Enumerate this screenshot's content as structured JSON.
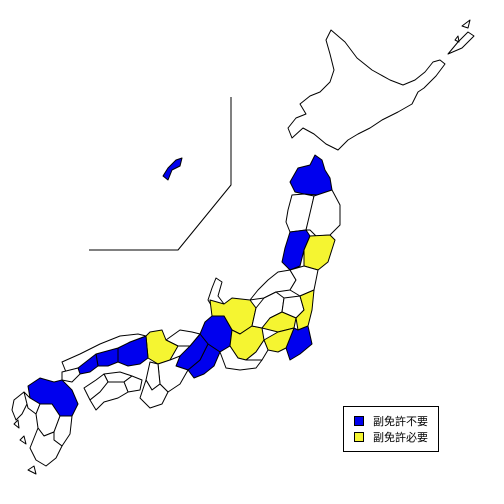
{
  "colors": {
    "no_license": "#0000ee",
    "license_required": "#f5f531",
    "other": "#ffffff",
    "border": "#000000"
  },
  "legend": {
    "no_license_label": "副免許不要",
    "license_required_label": "副免許必要"
  }
}
